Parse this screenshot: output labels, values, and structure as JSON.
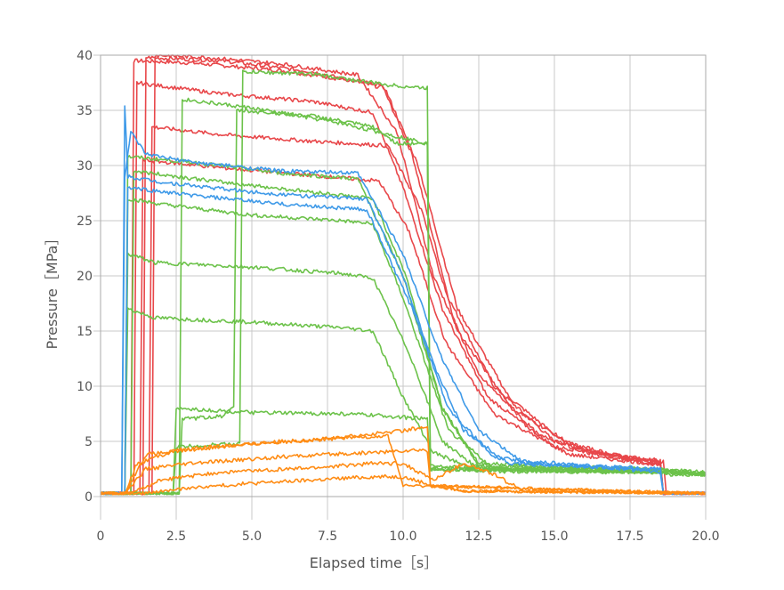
{
  "chart_data": {
    "type": "line",
    "title": "",
    "xlabel": "Elapsed time［s］",
    "ylabel": "Pressure［MPa］",
    "xlim": [
      0,
      20
    ],
    "ylim": [
      0,
      40
    ],
    "x_ticks": [
      "0",
      "2.5",
      "5.0",
      "7.5",
      "10.0",
      "12.5",
      "15.0",
      "17.5",
      "20.0"
    ],
    "y_ticks": [
      "0",
      "5",
      "10",
      "15",
      "20",
      "25",
      "30",
      "35",
      "40"
    ],
    "grid": true,
    "legend": "none",
    "colors": {
      "red": "#e8474a",
      "green": "#6cc24a",
      "blue": "#3f9ae8",
      "orange": "#ff8c14"
    },
    "series": [
      {
        "color": "red",
        "points": [
          [
            0,
            0.3
          ],
          [
            1.0,
            0.3
          ],
          [
            1.1,
            39.5
          ],
          [
            3.0,
            39.3
          ],
          [
            6.0,
            38.6
          ],
          [
            9.3,
            37.3
          ],
          [
            10.3,
            31
          ],
          [
            11.5,
            18
          ],
          [
            13.0,
            10
          ],
          [
            15.0,
            5
          ],
          [
            17.0,
            3.6
          ],
          [
            18.5,
            3.3
          ],
          [
            18.6,
            0.3
          ],
          [
            20,
            0.3
          ]
        ]
      },
      {
        "color": "red",
        "points": [
          [
            0,
            0.3
          ],
          [
            1.4,
            0.3
          ],
          [
            1.5,
            39.8
          ],
          [
            4.0,
            39.5
          ],
          [
            7.0,
            38.5
          ],
          [
            9.4,
            37.0
          ],
          [
            10.5,
            30
          ],
          [
            11.8,
            17
          ],
          [
            13.5,
            9
          ],
          [
            15.5,
            4.5
          ],
          [
            18.5,
            3.0
          ],
          [
            18.6,
            0.3
          ],
          [
            20,
            0.3
          ]
        ]
      },
      {
        "color": "red",
        "points": [
          [
            0,
            0.3
          ],
          [
            1.1,
            0.3
          ],
          [
            1.2,
            37.5
          ],
          [
            4.0,
            36.5
          ],
          [
            7.0,
            35.8
          ],
          [
            9.0,
            34.8
          ],
          [
            10.0,
            28
          ],
          [
            11.3,
            17
          ],
          [
            12.8,
            9
          ],
          [
            15.0,
            4.5
          ],
          [
            18.5,
            3.2
          ],
          [
            18.6,
            0.3
          ],
          [
            20,
            0.3
          ]
        ]
      },
      {
        "color": "red",
        "points": [
          [
            0,
            0.3
          ],
          [
            1.6,
            0.3
          ],
          [
            1.7,
            33.5
          ],
          [
            4.0,
            32.8
          ],
          [
            7.0,
            32.2
          ],
          [
            9.5,
            31.8
          ],
          [
            10.6,
            26
          ],
          [
            11.8,
            15
          ],
          [
            13.6,
            8
          ],
          [
            16.0,
            4
          ],
          [
            18.5,
            2.8
          ],
          [
            18.6,
            0.3
          ],
          [
            20,
            0.3
          ]
        ]
      },
      {
        "color": "red",
        "points": [
          [
            0,
            0.3
          ],
          [
            1.7,
            0.3
          ],
          [
            1.8,
            40
          ],
          [
            3.5,
            39.8
          ],
          [
            6.0,
            39.2
          ],
          [
            8.5,
            38.2
          ],
          [
            9.8,
            33
          ],
          [
            11.0,
            20
          ],
          [
            12.5,
            11
          ],
          [
            14.5,
            5.5
          ],
          [
            17.5,
            3.4
          ],
          [
            18.6,
            3.2
          ],
          [
            18.7,
            0.3
          ],
          [
            20,
            0.3
          ]
        ]
      },
      {
        "color": "red",
        "points": [
          [
            0,
            0.3
          ],
          [
            1.3,
            0.3
          ],
          [
            1.4,
            30.5
          ],
          [
            4.0,
            29.8
          ],
          [
            7.5,
            29.0
          ],
          [
            9.2,
            28.6
          ],
          [
            10.2,
            24
          ],
          [
            11.4,
            14
          ],
          [
            13.0,
            7.5
          ],
          [
            15.5,
            3.8
          ],
          [
            18.5,
            2.9
          ],
          [
            18.6,
            0.3
          ],
          [
            20,
            0.3
          ]
        ]
      },
      {
        "color": "green",
        "points": [
          [
            0,
            0.3
          ],
          [
            0.8,
            0.3
          ],
          [
            0.9,
            27
          ],
          [
            2.0,
            26.5
          ],
          [
            5.0,
            25.5
          ],
          [
            8.0,
            25.0
          ],
          [
            9.0,
            24.7
          ],
          [
            10.0,
            18
          ],
          [
            11.5,
            6
          ],
          [
            13.0,
            2.5
          ],
          [
            18.6,
            2.2
          ],
          [
            18.7,
            2.0
          ],
          [
            20,
            2.0
          ]
        ]
      },
      {
        "color": "green",
        "points": [
          [
            0,
            0.3
          ],
          [
            0.8,
            0.3
          ],
          [
            0.9,
            30.8
          ],
          [
            3.0,
            30.3
          ],
          [
            6.0,
            29.3
          ],
          [
            8.5,
            28.8
          ],
          [
            10.0,
            20
          ],
          [
            11.3,
            8
          ],
          [
            12.5,
            3
          ],
          [
            18.6,
            2.4
          ],
          [
            20,
            2.2
          ]
        ]
      },
      {
        "color": "green",
        "points": [
          [
            0,
            0.3
          ],
          [
            0.8,
            0.3
          ],
          [
            0.9,
            22
          ],
          [
            1.8,
            21.2
          ],
          [
            5.0,
            20.8
          ],
          [
            8.0,
            20.2
          ],
          [
            9.0,
            19.8
          ],
          [
            10.2,
            13
          ],
          [
            11.3,
            5
          ],
          [
            12.5,
            2.5
          ],
          [
            18.6,
            2.3
          ],
          [
            20,
            2.0
          ]
        ]
      },
      {
        "color": "green",
        "points": [
          [
            0,
            0.3
          ],
          [
            0.8,
            0.3
          ],
          [
            0.9,
            17
          ],
          [
            1.8,
            16.2
          ],
          [
            5.0,
            15.8
          ],
          [
            8.0,
            15.3
          ],
          [
            9.0,
            15.0
          ],
          [
            10.0,
            9
          ],
          [
            11.0,
            4
          ],
          [
            12.5,
            2.3
          ],
          [
            18.6,
            2.2
          ],
          [
            20,
            2.0
          ]
        ]
      },
      {
        "color": "green",
        "points": [
          [
            0,
            0.3
          ],
          [
            1.0,
            0.3
          ],
          [
            1.1,
            29.5
          ],
          [
            4.0,
            28.5
          ],
          [
            7.0,
            27.6
          ],
          [
            9.0,
            27.0
          ],
          [
            10.1,
            20
          ],
          [
            11.3,
            8
          ],
          [
            12.5,
            2.8
          ],
          [
            18.6,
            2.4
          ],
          [
            20,
            2.1
          ]
        ]
      },
      {
        "color": "green",
        "points": [
          [
            0,
            0.3
          ],
          [
            2.6,
            0.3
          ],
          [
            2.7,
            7.0
          ],
          [
            4.0,
            7.3
          ],
          [
            4.4,
            8.0
          ],
          [
            4.5,
            35
          ],
          [
            7.0,
            34.5
          ],
          [
            9.0,
            33.5
          ],
          [
            9.8,
            32
          ],
          [
            10.8,
            32
          ],
          [
            10.9,
            2.8
          ],
          [
            12.5,
            2.6
          ],
          [
            18.6,
            2.4
          ],
          [
            20,
            2.0
          ]
        ]
      },
      {
        "color": "green",
        "points": [
          [
            0,
            0.3
          ],
          [
            2.4,
            0.3
          ],
          [
            2.5,
            4.5
          ],
          [
            4.6,
            4.8
          ],
          [
            4.7,
            38.5
          ],
          [
            7.0,
            38.3
          ],
          [
            9.5,
            37.3
          ],
          [
            10.8,
            37
          ],
          [
            10.9,
            2.5
          ],
          [
            13.0,
            2.4
          ],
          [
            18.6,
            2.2
          ],
          [
            20,
            2.0
          ]
        ]
      },
      {
        "color": "green",
        "points": [
          [
            0,
            0.3
          ],
          [
            2.4,
            0.3
          ],
          [
            2.5,
            8.0
          ],
          [
            5.0,
            7.6
          ],
          [
            8.0,
            7.5
          ],
          [
            9.5,
            7.3
          ],
          [
            10.8,
            7.0
          ],
          [
            10.9,
            2.5
          ],
          [
            18.6,
            2.2
          ],
          [
            20,
            2.0
          ]
        ]
      },
      {
        "color": "green",
        "points": [
          [
            0,
            0.3
          ],
          [
            2.6,
            0.3
          ],
          [
            2.7,
            36
          ],
          [
            5.0,
            35.2
          ],
          [
            8.0,
            33.8
          ],
          [
            10.8,
            32
          ],
          [
            10.9,
            2.6
          ],
          [
            18.6,
            2.3
          ],
          [
            20,
            2.0
          ]
        ]
      },
      {
        "color": "blue",
        "points": [
          [
            0,
            0.3
          ],
          [
            0.7,
            0.3
          ],
          [
            0.8,
            35.5
          ],
          [
            0.9,
            29
          ],
          [
            2.0,
            28.5
          ],
          [
            5.0,
            27.6
          ],
          [
            7.0,
            27.2
          ],
          [
            8.8,
            27.0
          ],
          [
            10.0,
            20
          ],
          [
            11.0,
            12
          ],
          [
            12.0,
            6
          ],
          [
            13.5,
            3
          ],
          [
            18.5,
            2.5
          ],
          [
            18.6,
            0.3
          ],
          [
            20,
            0.3
          ]
        ]
      },
      {
        "color": "blue",
        "points": [
          [
            0,
            0.3
          ],
          [
            0.7,
            0.3
          ],
          [
            0.8,
            29
          ],
          [
            1.0,
            33
          ],
          [
            1.5,
            31
          ],
          [
            3.0,
            30.3
          ],
          [
            6.0,
            29.5
          ],
          [
            8.5,
            29.3
          ],
          [
            10.0,
            22
          ],
          [
            11.2,
            13
          ],
          [
            12.5,
            6
          ],
          [
            14.0,
            3
          ],
          [
            18.5,
            2.4
          ],
          [
            18.6,
            0.3
          ],
          [
            20,
            0.3
          ]
        ]
      },
      {
        "color": "blue",
        "points": [
          [
            0,
            0.3
          ],
          [
            0.8,
            0.3
          ],
          [
            0.9,
            28
          ],
          [
            3.0,
            27.3
          ],
          [
            6.0,
            26.5
          ],
          [
            8.8,
            26.0
          ],
          [
            10.3,
            17
          ],
          [
            11.5,
            8
          ],
          [
            13.0,
            3.5
          ],
          [
            18.5,
            2.2
          ],
          [
            18.6,
            0.3
          ],
          [
            20,
            0.3
          ]
        ]
      },
      {
        "color": "orange",
        "points": [
          [
            0,
            0.3
          ],
          [
            0.8,
            0.3
          ],
          [
            1.2,
            3.0
          ],
          [
            2.5,
            4.2
          ],
          [
            5.0,
            4.8
          ],
          [
            7.5,
            5.2
          ],
          [
            10.0,
            6.0
          ],
          [
            10.8,
            6.3
          ],
          [
            10.9,
            1.0
          ],
          [
            12.0,
            0.5
          ],
          [
            20,
            0.3
          ]
        ]
      },
      {
        "color": "orange",
        "points": [
          [
            0,
            0.3
          ],
          [
            0.8,
            0.3
          ],
          [
            1.5,
            2.5
          ],
          [
            3.0,
            3.0
          ],
          [
            6.0,
            3.6
          ],
          [
            9.0,
            4.0
          ],
          [
            10.5,
            4.2
          ],
          [
            10.8,
            4.2
          ],
          [
            10.9,
            1.0
          ],
          [
            20,
            0.3
          ]
        ]
      },
      {
        "color": "orange",
        "points": [
          [
            0,
            0.3
          ],
          [
            1.0,
            0.3
          ],
          [
            2.0,
            1.5
          ],
          [
            4.0,
            2.2
          ],
          [
            7.0,
            2.6
          ],
          [
            9.0,
            3.0
          ],
          [
            10.0,
            3.0
          ],
          [
            11.0,
            1.5
          ],
          [
            12.0,
            3.0
          ],
          [
            13.0,
            2.0
          ],
          [
            14.0,
            0.5
          ],
          [
            20,
            0.3
          ]
        ]
      },
      {
        "color": "orange",
        "points": [
          [
            0,
            0.3
          ],
          [
            1.5,
            0.3
          ],
          [
            3.0,
            0.8
          ],
          [
            5.0,
            1.2
          ],
          [
            7.0,
            1.5
          ],
          [
            9.0,
            1.8
          ],
          [
            10.0,
            1.8
          ],
          [
            11.0,
            1.0
          ],
          [
            12.0,
            0.5
          ],
          [
            20,
            0.3
          ]
        ]
      },
      {
        "color": "orange",
        "points": [
          [
            0,
            0.3
          ],
          [
            0.8,
            0.3
          ],
          [
            1.5,
            3.8
          ],
          [
            3.5,
            4.4
          ],
          [
            6.0,
            5.0
          ],
          [
            8.5,
            5.4
          ],
          [
            9.5,
            5.5
          ],
          [
            10.0,
            1.0
          ],
          [
            20,
            0.3
          ]
        ]
      }
    ]
  }
}
